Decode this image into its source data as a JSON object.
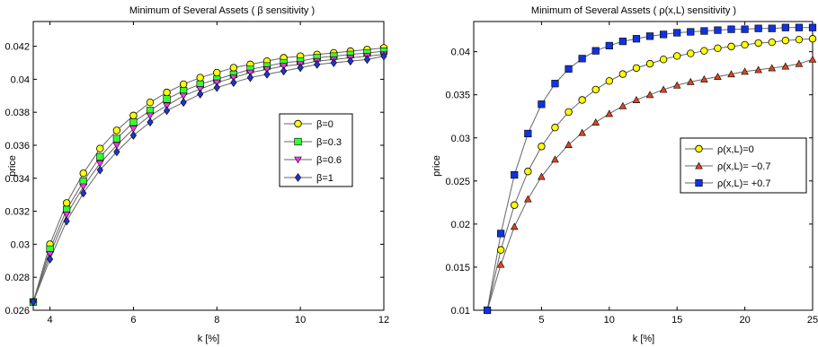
{
  "chart_data": [
    {
      "type": "line",
      "title": "Minimum of Several Assets ( β sensitivity )",
      "xlabel": "k [%]",
      "ylabel": "price",
      "xlim": [
        3.6,
        12
      ],
      "ylim": [
        0.026,
        0.0435
      ],
      "xticks": [
        4,
        6,
        8,
        10,
        12
      ],
      "yticks": [
        0.026,
        0.028,
        0.03,
        0.032,
        0.034,
        0.036,
        0.038,
        0.04,
        0.042
      ],
      "ytick_labels": [
        "0.026",
        "0.028",
        "0.03",
        "0.032",
        "0.034",
        "0.036",
        "0.038",
        "0.04",
        "0.042"
      ],
      "grid": false,
      "legend_position": "right",
      "x": [
        3.6,
        4.0,
        4.4,
        4.8,
        5.2,
        5.6,
        6.0,
        6.4,
        6.8,
        7.2,
        7.6,
        8.0,
        8.4,
        8.8,
        9.2,
        9.6,
        10.0,
        10.4,
        10.8,
        11.2,
        11.6,
        12.0
      ],
      "series": [
        {
          "name": "β=0",
          "color": "#ffff00",
          "marker": "circle",
          "values": [
            0.0265,
            0.03,
            0.0325,
            0.0343,
            0.0358,
            0.0369,
            0.0378,
            0.0386,
            0.0392,
            0.0397,
            0.0401,
            0.0404,
            0.0407,
            0.0409,
            0.0411,
            0.0413,
            0.0414,
            0.0415,
            0.0416,
            0.0417,
            0.0418,
            0.0419
          ]
        },
        {
          "name": "β=0.3",
          "color": "#33ff33",
          "marker": "square",
          "values": [
            0.0265,
            0.0297,
            0.0321,
            0.0338,
            0.0353,
            0.0364,
            0.0374,
            0.0381,
            0.0388,
            0.0393,
            0.0397,
            0.04,
            0.0403,
            0.0406,
            0.0408,
            0.041,
            0.0411,
            0.0413,
            0.0414,
            0.0415,
            0.0416,
            0.0417
          ]
        },
        {
          "name": "β=0.6",
          "color": "#ff33ff",
          "marker": "triangle-down",
          "values": [
            0.0265,
            0.0294,
            0.0318,
            0.0335,
            0.0349,
            0.036,
            0.037,
            0.0378,
            0.0384,
            0.039,
            0.0394,
            0.0398,
            0.0401,
            0.0404,
            0.0406,
            0.0408,
            0.0409,
            0.0411,
            0.0412,
            0.0413,
            0.0414,
            0.0415
          ]
        },
        {
          "name": "β=1",
          "color": "#2233cc",
          "marker": "diamond",
          "values": [
            0.0265,
            0.0291,
            0.0314,
            0.0331,
            0.0345,
            0.0356,
            0.0366,
            0.0374,
            0.0381,
            0.0386,
            0.0391,
            0.0395,
            0.0398,
            0.0401,
            0.0403,
            0.0405,
            0.0407,
            0.0409,
            0.041,
            0.0411,
            0.0412,
            0.0414
          ]
        }
      ]
    },
    {
      "type": "line",
      "title": "Minimum of Several Assets ( ρ(x,L) sensitivity )",
      "xlabel": "k [%]",
      "ylabel": "price",
      "xlim": [
        0,
        25
      ],
      "ylim": [
        0.01,
        0.0435
      ],
      "xticks": [
        5,
        10,
        15,
        20,
        25
      ],
      "yticks": [
        0.01,
        0.015,
        0.02,
        0.025,
        0.03,
        0.035,
        0.04
      ],
      "ytick_labels": [
        "0.01",
        "0.015",
        "0.02",
        "0.025",
        "0.03",
        "0.035",
        "0.04"
      ],
      "grid": false,
      "legend_position": "right",
      "x": [
        1,
        2,
        3,
        4,
        5,
        6,
        7,
        8,
        9,
        10,
        11,
        12,
        13,
        14,
        15,
        16,
        17,
        18,
        19,
        20,
        21,
        22,
        23,
        24,
        25
      ],
      "series": [
        {
          "name": "ρ(x,L)=0",
          "color": "#ffff00",
          "marker": "circle",
          "values": [
            0.01,
            0.017,
            0.0222,
            0.0261,
            0.029,
            0.0312,
            0.033,
            0.0344,
            0.0356,
            0.0366,
            0.0374,
            0.0381,
            0.0386,
            0.0391,
            0.0395,
            0.0398,
            0.0401,
            0.0404,
            0.0406,
            0.0408,
            0.041,
            0.0411,
            0.0413,
            0.0414,
            0.0415
          ]
        },
        {
          "name": "ρ(x,L)= −0.7",
          "color": "#dd4422",
          "marker": "triangle-up",
          "values": [
            0.01,
            0.0153,
            0.0197,
            0.0229,
            0.0255,
            0.0275,
            0.0292,
            0.0306,
            0.0318,
            0.0328,
            0.0337,
            0.0344,
            0.035,
            0.0356,
            0.0361,
            0.0365,
            0.0368,
            0.0371,
            0.0374,
            0.0377,
            0.0379,
            0.0381,
            0.0383,
            0.0386,
            0.0391
          ]
        },
        {
          "name": "ρ(x,L)= +0.7",
          "color": "#1133dd",
          "marker": "square",
          "values": [
            0.01,
            0.0189,
            0.0257,
            0.0305,
            0.0339,
            0.0363,
            0.038,
            0.0392,
            0.0401,
            0.0407,
            0.0412,
            0.0415,
            0.0418,
            0.042,
            0.0422,
            0.0423,
            0.0424,
            0.0425,
            0.0426,
            0.0426,
            0.0427,
            0.0427,
            0.0428,
            0.0428,
            0.0428
          ]
        }
      ]
    }
  ]
}
